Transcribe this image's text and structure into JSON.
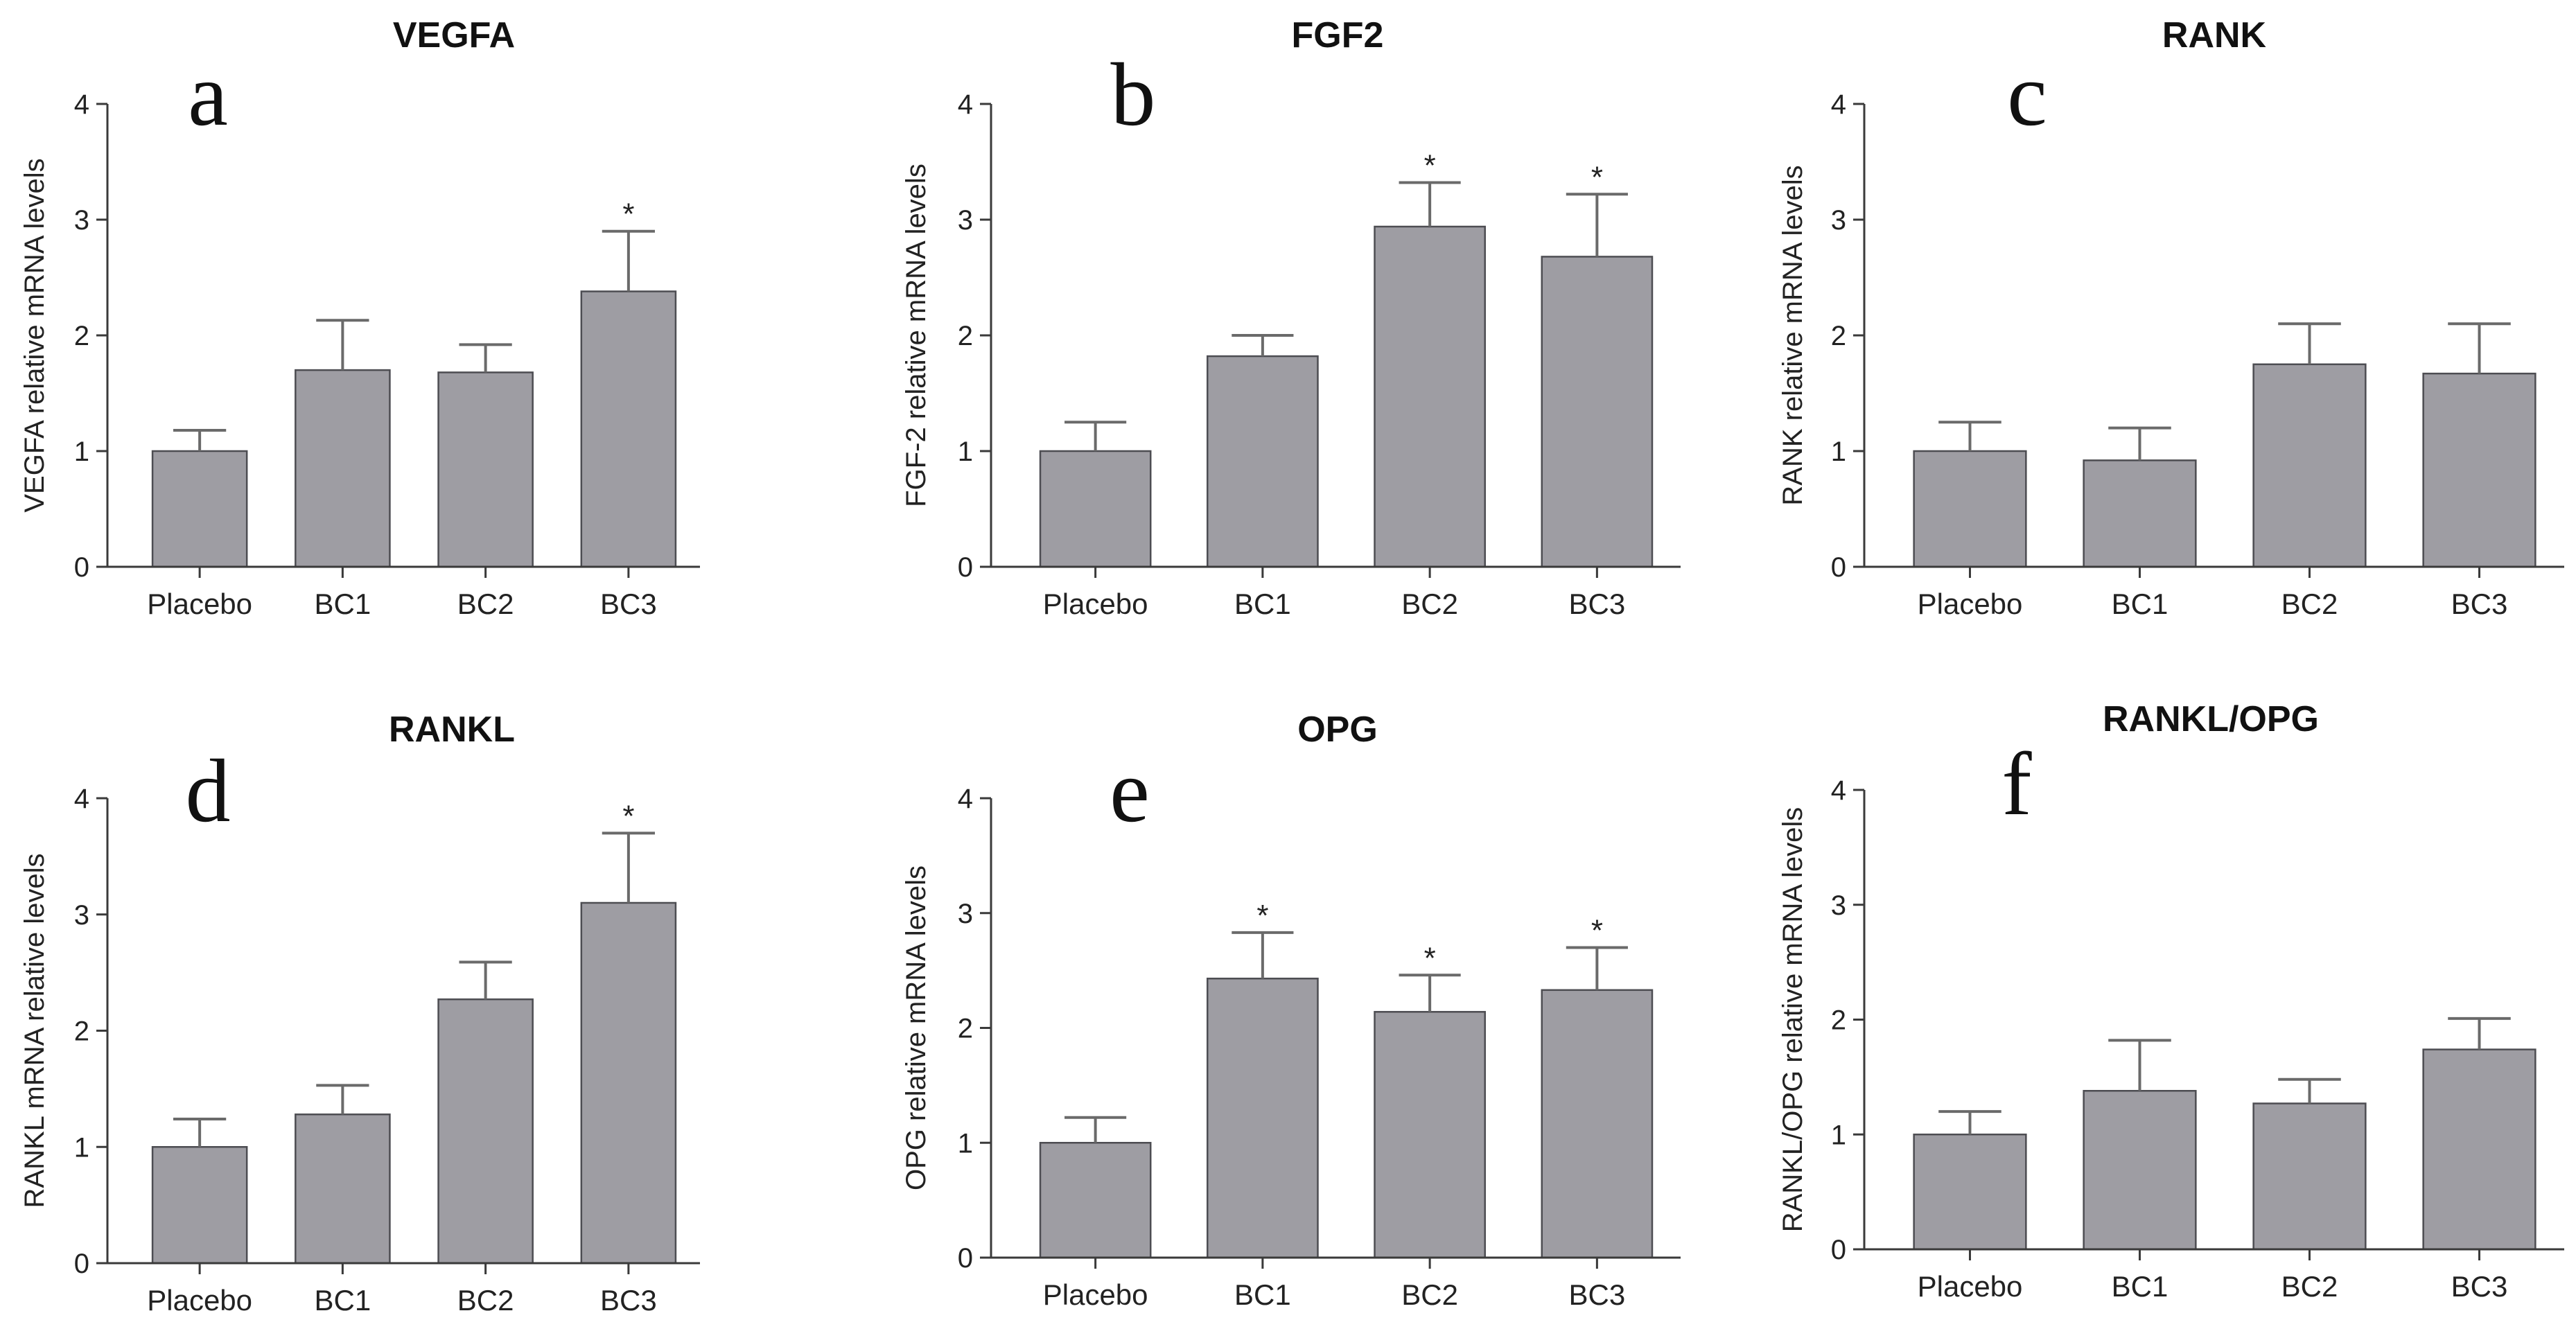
{
  "chart_data": [
    {
      "type": "bar",
      "letter": "a",
      "title": "VEGFA",
      "ylabel": "VEGFA relative mRNA levels",
      "categories": [
        "Placebo",
        "BC1",
        "BC2",
        "BC3"
      ],
      "values": [
        1.0,
        1.7,
        1.68,
        2.38
      ],
      "errors": [
        0.18,
        0.43,
        0.24,
        0.52
      ],
      "significant": [
        false,
        false,
        false,
        true
      ],
      "significance_marker": "*",
      "ylim": [
        0,
        4
      ],
      "yticks": [
        "0",
        "1",
        "2",
        "3",
        "4"
      ]
    },
    {
      "type": "bar",
      "letter": "b",
      "title": "FGF2",
      "ylabel": "FGF-2 relative mRNA levels",
      "categories": [
        "Placebo",
        "BC1",
        "BC2",
        "BC3"
      ],
      "values": [
        1.0,
        1.82,
        2.94,
        2.68
      ],
      "errors": [
        0.25,
        0.18,
        0.38,
        0.54
      ],
      "significant": [
        false,
        false,
        true,
        true
      ],
      "significance_marker": "*",
      "ylim": [
        0,
        4
      ],
      "yticks": [
        "0",
        "1",
        "2",
        "3",
        "4"
      ]
    },
    {
      "type": "bar",
      "letter": "c",
      "title": "RANK",
      "ylabel": "RANK relative mRNA levels",
      "categories": [
        "Placebo",
        "BC1",
        "BC2",
        "BC3"
      ],
      "values": [
        1.0,
        0.92,
        1.75,
        1.67
      ],
      "errors": [
        0.25,
        0.28,
        0.35,
        0.43
      ],
      "significant": [
        false,
        false,
        false,
        false
      ],
      "significance_marker": "*",
      "ylim": [
        0,
        4
      ],
      "yticks": [
        "0",
        "1",
        "2",
        "3",
        "4"
      ]
    },
    {
      "type": "bar",
      "letter": "d",
      "title": "RANKL",
      "ylabel": "RANKL mRNA relative levels",
      "categories": [
        "Placebo",
        "BC1",
        "BC2",
        "BC3"
      ],
      "values": [
        1.0,
        1.28,
        2.27,
        3.1
      ],
      "errors": [
        0.24,
        0.25,
        0.32,
        0.6
      ],
      "significant": [
        false,
        false,
        false,
        true
      ],
      "significance_marker": "*",
      "ylim": [
        0,
        4
      ],
      "yticks": [
        "0",
        "1",
        "2",
        "3",
        "4"
      ]
    },
    {
      "type": "bar",
      "letter": "e",
      "title": "OPG",
      "ylabel": "OPG relative mRNA levels",
      "categories": [
        "Placebo",
        "BC1",
        "BC2",
        "BC3"
      ],
      "values": [
        1.0,
        2.43,
        2.14,
        2.33
      ],
      "errors": [
        0.22,
        0.4,
        0.32,
        0.37
      ],
      "significant": [
        false,
        true,
        true,
        true
      ],
      "significance_marker": "*",
      "ylim": [
        0,
        4
      ],
      "yticks": [
        "0",
        "1",
        "2",
        "3",
        "4"
      ]
    },
    {
      "type": "bar",
      "letter": "f",
      "title": "RANKL/OPG",
      "ylabel": "RANKL/OPG relative mRNA levels",
      "categories": [
        "Placebo",
        "BC1",
        "BC2",
        "BC3"
      ],
      "values": [
        1.0,
        1.38,
        1.27,
        1.74
      ],
      "errors": [
        0.2,
        0.44,
        0.21,
        0.27
      ],
      "significant": [
        false,
        false,
        false,
        false
      ],
      "significance_marker": "*",
      "ylim": [
        0,
        4
      ],
      "yticks": [
        "0",
        "1",
        "2",
        "3",
        "4"
      ]
    }
  ]
}
